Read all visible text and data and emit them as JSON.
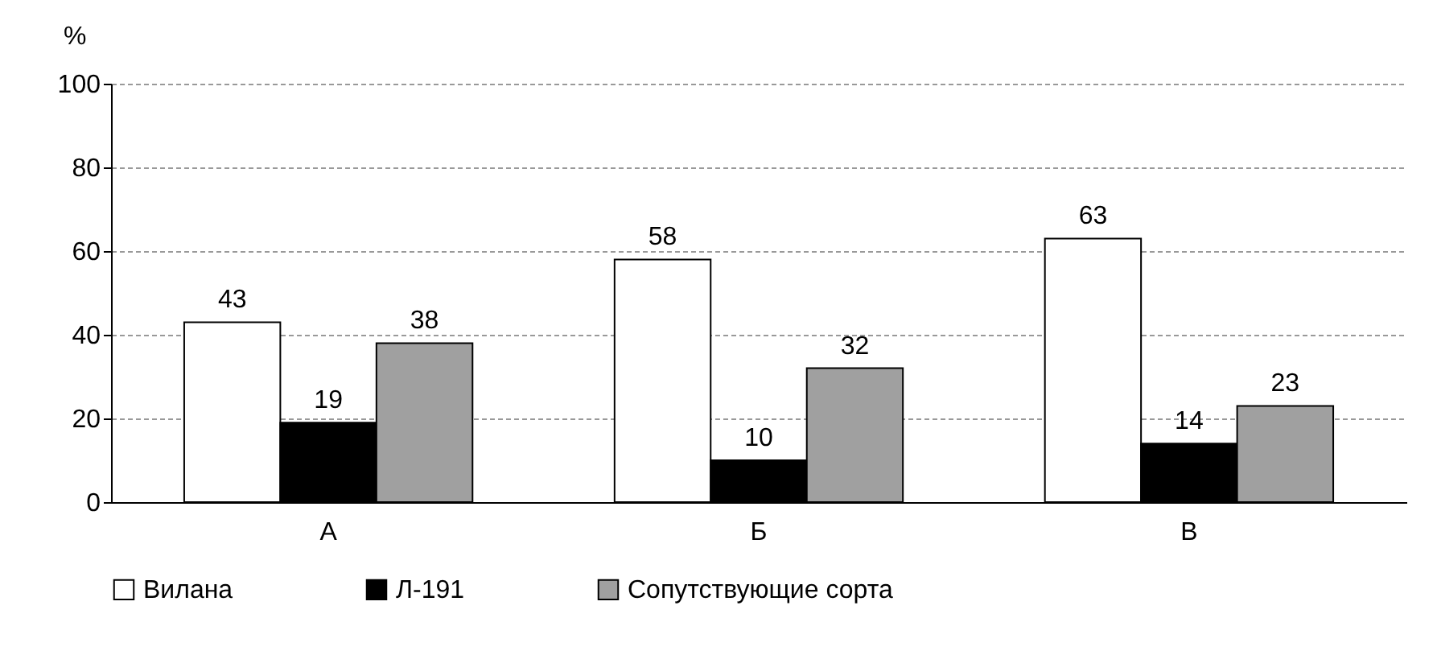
{
  "chart_data": {
    "type": "bar",
    "ylabel": "%",
    "categories": [
      "А",
      "Б",
      "В"
    ],
    "series": [
      {
        "name": "Вилана",
        "color": "#ffffff",
        "values": [
          43,
          58,
          63
        ]
      },
      {
        "name": "Л-191",
        "color": "#000000",
        "values": [
          19,
          10,
          14
        ]
      },
      {
        "name": "Сопутствующие сорта",
        "color": "#a0a0a0",
        "values": [
          38,
          32,
          23
        ]
      }
    ],
    "ylim": [
      0,
      100
    ],
    "yticks": [
      0,
      20,
      40,
      60,
      80,
      100
    ],
    "grid": "y",
    "legend": "bottom",
    "data_labels": true
  }
}
